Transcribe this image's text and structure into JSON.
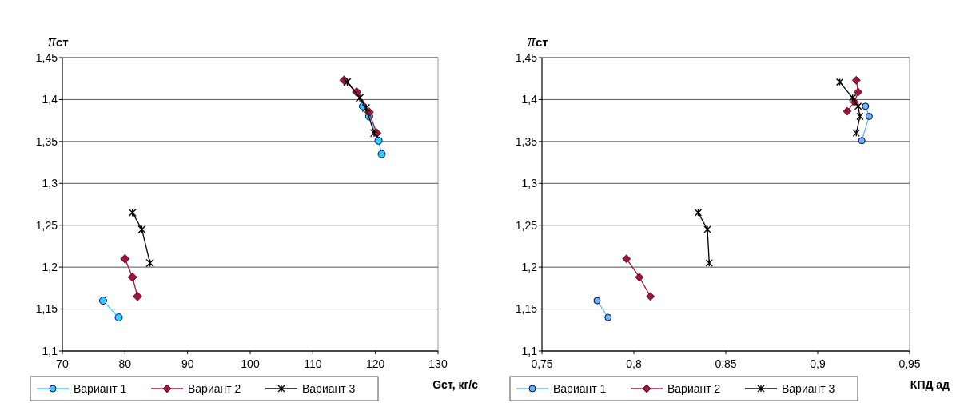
{
  "chart_data": [
    {
      "type": "line",
      "ylabel": "πст",
      "xlabel": "Gст, кг/с",
      "xlim": [
        70,
        130
      ],
      "xticks": [
        70,
        80,
        90,
        100,
        110,
        120,
        130
      ],
      "ylim": [
        1.1,
        1.45
      ],
      "yticks": [
        {
          "value": 1.1,
          "label": "1,1"
        },
        {
          "value": 1.15,
          "label": "1,15"
        },
        {
          "value": 1.2,
          "label": "1,2"
        },
        {
          "value": 1.25,
          "label": "1,25"
        },
        {
          "value": 1.3,
          "label": "1,3"
        },
        {
          "value": 1.35,
          "label": "1,35"
        },
        {
          "value": 1.4,
          "label": "1,4"
        },
        {
          "value": 1.45,
          "label": "1,45"
        }
      ],
      "grid": "y",
      "legend": "bottom",
      "line_style": "solid",
      "series": [
        {
          "name": "Вариант 1",
          "color": "#33ccff",
          "marker": "circle",
          "x": [
            76.5,
            79,
            null,
            118,
            119,
            120.5,
            121
          ],
          "values": [
            1.16,
            1.14,
            null,
            1.392,
            1.38,
            1.351,
            1.335
          ]
        },
        {
          "name": "Вариант 2",
          "color": "#a0143c",
          "marker": "diamond",
          "x": [
            80,
            81.2,
            82,
            null,
            115,
            117,
            119,
            120.2
          ],
          "values": [
            1.21,
            1.188,
            1.165,
            null,
            1.423,
            1.409,
            1.385,
            1.36
          ]
        },
        {
          "name": "Вариант 3",
          "color": "#000000",
          "marker": "cross",
          "x": [
            81.2,
            82.7,
            84,
            null,
            115.5,
            117.5,
            118.5,
            119.8
          ],
          "values": [
            1.265,
            1.245,
            1.205,
            null,
            1.421,
            1.402,
            1.39,
            1.36
          ]
        }
      ]
    },
    {
      "type": "line",
      "ylabel": "πст",
      "xlabel": "КПД ад",
      "xlim": [
        0.75,
        0.95
      ],
      "xticks": [
        {
          "value": 0.75,
          "label": "0,75"
        },
        {
          "value": 0.8,
          "label": "0,8"
        },
        {
          "value": 0.85,
          "label": "0,85"
        },
        {
          "value": 0.9,
          "label": "0,9"
        },
        {
          "value": 0.95,
          "label": "0,95"
        }
      ],
      "ylim": [
        1.1,
        1.45
      ],
      "yticks": [
        {
          "value": 1.1,
          "label": "1,1"
        },
        {
          "value": 1.15,
          "label": "1,15"
        },
        {
          "value": 1.2,
          "label": "1,2"
        },
        {
          "value": 1.25,
          "label": "1,25"
        },
        {
          "value": 1.3,
          "label": "1,3"
        },
        {
          "value": 1.35,
          "label": "1,35"
        },
        {
          "value": 1.4,
          "label": "1,4"
        },
        {
          "value": 1.45,
          "label": "1,45"
        }
      ],
      "grid": "y",
      "legend": "bottom",
      "line_style": "solid",
      "series": [
        {
          "name": "Вариант 1",
          "color": "#66b8e8",
          "marker": "circle",
          "x": [
            0.78,
            0.786,
            null,
            0.926,
            0.928,
            0.924
          ],
          "values": [
            1.16,
            1.14,
            null,
            1.392,
            1.38,
            1.351
          ]
        },
        {
          "name": "Вариант 2",
          "color": "#a0143c",
          "marker": "diamond",
          "x": [
            0.796,
            0.803,
            0.809,
            null,
            0.921,
            0.922,
            0.92,
            0.916
          ],
          "values": [
            1.21,
            1.188,
            1.165,
            null,
            1.423,
            1.409,
            1.397,
            1.386
          ]
        },
        {
          "name": "Вариант 3",
          "color": "#000000",
          "marker": "cross",
          "x": [
            0.835,
            0.84,
            0.841,
            null,
            0.912,
            0.919,
            0.922,
            0.923,
            0.921
          ],
          "values": [
            1.265,
            1.245,
            1.205,
            null,
            1.421,
            1.402,
            1.392,
            1.38,
            1.36
          ]
        }
      ]
    }
  ]
}
